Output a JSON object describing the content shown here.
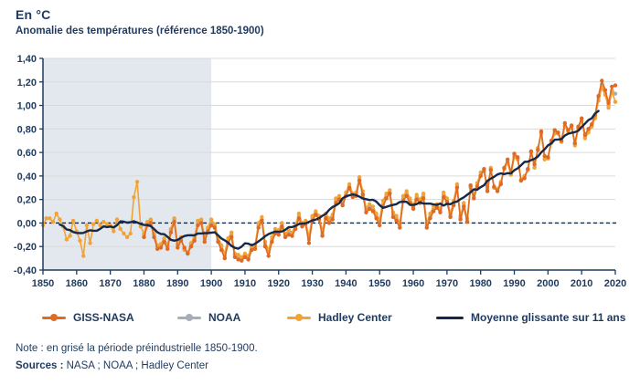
{
  "page_background": "#ffffff",
  "header": {
    "unit_label": "En °C",
    "title": "Anomalie des températures (référence 1850-1900)"
  },
  "colors": {
    "text_navy": "#1e3a5f",
    "axis_navy": "#1e3a5f",
    "grid": "#d9d9d9",
    "grid_on_band": "#f2f4f7",
    "zero_dash": "#0f2644",
    "preindustrial_band": "#e3e8ee",
    "giss_nasa": "#e06a22",
    "noaa": "#a7aeb9",
    "hadley": "#f2a336",
    "moving_average": "#14294a"
  },
  "chart_data": {
    "type": "line",
    "title": "Anomalie des températures (référence 1850-1900)",
    "ylabel": "En °C",
    "xlabel": "",
    "grid": "horizontal",
    "legend_position": "bottom",
    "xlim": [
      1850,
      2020
    ],
    "ylim": [
      -0.4,
      1.4
    ],
    "xticks": [
      1850,
      1860,
      1870,
      1880,
      1890,
      1900,
      1910,
      1920,
      1930,
      1940,
      1950,
      1960,
      1970,
      1980,
      1990,
      2000,
      2010,
      2020
    ],
    "yticks": [
      {
        "value": 1.4,
        "label": "1,40"
      },
      {
        "value": 1.2,
        "label": "1,20"
      },
      {
        "value": 1.0,
        "label": "1,00"
      },
      {
        "value": 0.8,
        "label": "0,80"
      },
      {
        "value": 0.6,
        "label": "0,60"
      },
      {
        "value": 0.4,
        "label": "0,40"
      },
      {
        "value": 0.2,
        "label": "0,20"
      },
      {
        "value": 0.0,
        "label": "0,00"
      },
      {
        "value": -0.2,
        "label": "-0,20"
      },
      {
        "value": -0.4,
        "label": "-0,40"
      }
    ],
    "zero_line_dashed": true,
    "shaded_region": {
      "from": 1850,
      "to": 1900,
      "meaning": "période préindustrielle 1850-1900"
    },
    "series": [
      {
        "name": "GISS-NASA",
        "color": "#e06a22",
        "marker": "dot",
        "start_year": 1880,
        "values": [
          -0.12,
          -0.02,
          0.0,
          -0.12,
          -0.22,
          -0.21,
          -0.16,
          -0.22,
          -0.08,
          0.01,
          -0.21,
          -0.15,
          -0.21,
          -0.26,
          -0.2,
          -0.15,
          -0.02,
          0.0,
          -0.16,
          -0.07,
          -0.02,
          -0.04,
          -0.16,
          -0.23,
          -0.3,
          -0.17,
          -0.12,
          -0.29,
          -0.31,
          -0.32,
          -0.29,
          -0.31,
          -0.23,
          -0.22,
          -0.04,
          0.02,
          -0.2,
          -0.28,
          -0.16,
          -0.09,
          -0.1,
          -0.03,
          -0.12,
          -0.1,
          -0.11,
          -0.05,
          0.04,
          -0.03,
          -0.01,
          -0.17,
          0.02,
          0.07,
          0.03,
          -0.11,
          0.04,
          0.0,
          0.03,
          0.17,
          0.2,
          0.15,
          0.23,
          0.3,
          0.22,
          0.23,
          0.36,
          0.24,
          0.09,
          0.12,
          0.1,
          0.04,
          -0.02,
          0.14,
          0.21,
          0.25,
          0.05,
          0.02,
          -0.04,
          0.19,
          0.23,
          0.17,
          0.12,
          0.2,
          0.17,
          0.21,
          -0.04,
          0.04,
          0.1,
          0.13,
          0.09,
          0.22,
          0.18,
          0.05,
          0.15,
          0.3,
          0.03,
          0.14,
          0.01,
          0.32,
          0.21,
          0.31,
          0.4,
          0.46,
          0.27,
          0.45,
          0.31,
          0.27,
          0.33,
          0.47,
          0.54,
          0.43,
          0.59,
          0.56,
          0.36,
          0.38,
          0.46,
          0.61,
          0.5,
          0.62,
          0.78,
          0.57,
          0.56,
          0.7,
          0.79,
          0.77,
          0.7,
          0.85,
          0.79,
          0.83,
          0.68,
          0.82,
          0.89,
          0.75,
          0.8,
          0.84,
          0.92,
          1.08,
          1.21,
          1.13,
          1.02,
          1.16,
          1.17
        ]
      },
      {
        "name": "NOAA",
        "color": "#a7aeb9",
        "marker": "dot",
        "start_year": 1880,
        "values": [
          -0.1,
          0.0,
          0.02,
          -0.1,
          -0.2,
          -0.2,
          -0.14,
          -0.2,
          -0.06,
          0.03,
          -0.19,
          -0.13,
          -0.22,
          -0.26,
          -0.18,
          -0.13,
          0.0,
          0.02,
          -0.14,
          -0.05,
          0.01,
          -0.02,
          -0.14,
          -0.21,
          -0.28,
          -0.15,
          -0.1,
          -0.27,
          -0.29,
          -0.3,
          -0.27,
          -0.3,
          -0.21,
          -0.2,
          -0.02,
          0.03,
          -0.18,
          -0.25,
          -0.14,
          -0.07,
          -0.08,
          -0.01,
          -0.1,
          -0.08,
          -0.09,
          -0.03,
          0.06,
          -0.01,
          0.0,
          -0.14,
          0.04,
          0.08,
          0.04,
          -0.09,
          0.06,
          0.02,
          0.05,
          0.19,
          0.21,
          0.17,
          0.24,
          0.31,
          0.23,
          0.24,
          0.37,
          0.25,
          0.11,
          0.14,
          0.12,
          0.06,
          0.01,
          0.16,
          0.23,
          0.26,
          0.07,
          0.04,
          -0.02,
          0.21,
          0.25,
          0.19,
          0.13,
          0.22,
          0.18,
          0.23,
          -0.02,
          0.06,
          0.12,
          0.14,
          0.1,
          0.24,
          0.19,
          0.06,
          0.17,
          0.31,
          0.04,
          0.15,
          0.02,
          0.3,
          0.22,
          0.32,
          0.41,
          0.44,
          0.29,
          0.46,
          0.3,
          0.28,
          0.34,
          0.46,
          0.52,
          0.42,
          0.57,
          0.55,
          0.36,
          0.39,
          0.45,
          0.6,
          0.48,
          0.63,
          0.77,
          0.55,
          0.55,
          0.69,
          0.77,
          0.76,
          0.69,
          0.83,
          0.78,
          0.82,
          0.67,
          0.81,
          0.88,
          0.73,
          0.78,
          0.83,
          0.9,
          1.06,
          1.18,
          1.1,
          1.0,
          1.13,
          1.1
        ]
      },
      {
        "name": "Hadley Center",
        "color": "#f2a336",
        "marker": "dot",
        "start_year": 1850,
        "values": [
          -0.02,
          0.04,
          0.04,
          0.01,
          0.08,
          0.03,
          -0.03,
          -0.14,
          -0.11,
          0.02,
          -0.07,
          -0.15,
          -0.28,
          -0.02,
          -0.17,
          -0.01,
          0.02,
          -0.02,
          0.01,
          -0.01,
          -0.02,
          -0.07,
          0.03,
          -0.05,
          -0.09,
          -0.12,
          -0.09,
          0.22,
          0.35,
          -0.03,
          -0.09,
          0.01,
          0.03,
          -0.09,
          -0.19,
          -0.18,
          -0.13,
          -0.19,
          -0.05,
          0.04,
          -0.18,
          -0.12,
          -0.23,
          -0.25,
          -0.17,
          -0.12,
          0.02,
          0.03,
          -0.12,
          -0.04,
          0.03,
          -0.01,
          -0.12,
          -0.19,
          -0.26,
          -0.13,
          -0.08,
          -0.26,
          -0.27,
          -0.29,
          -0.26,
          -0.28,
          -0.19,
          -0.19,
          0.0,
          0.05,
          -0.16,
          -0.23,
          -0.12,
          -0.05,
          -0.06,
          0.0,
          -0.09,
          -0.06,
          -0.08,
          -0.02,
          0.08,
          0.0,
          0.02,
          -0.12,
          0.06,
          0.1,
          0.06,
          -0.07,
          0.08,
          0.04,
          0.07,
          0.21,
          0.23,
          0.19,
          0.26,
          0.33,
          0.25,
          0.26,
          0.39,
          0.27,
          0.13,
          0.16,
          0.14,
          0.08,
          0.03,
          0.19,
          0.25,
          0.28,
          0.09,
          0.06,
          0.0,
          0.23,
          0.27,
          0.21,
          0.15,
          0.24,
          0.2,
          0.25,
          0.0,
          0.08,
          0.14,
          0.16,
          0.12,
          0.26,
          0.21,
          0.08,
          0.19,
          0.33,
          0.06,
          0.17,
          0.04,
          0.31,
          0.24,
          0.34,
          0.43,
          0.45,
          0.31,
          0.47,
          0.3,
          0.29,
          0.35,
          0.46,
          0.51,
          0.41,
          0.56,
          0.54,
          0.37,
          0.4,
          0.45,
          0.6,
          0.47,
          0.64,
          0.76,
          0.54,
          0.55,
          0.68,
          0.76,
          0.76,
          0.69,
          0.82,
          0.78,
          0.81,
          0.66,
          0.8,
          0.87,
          0.72,
          0.77,
          0.82,
          0.89,
          1.04,
          1.15,
          1.09,
          0.98,
          1.12,
          1.03
        ]
      },
      {
        "name": "Moyenne glissante sur 11 ans",
        "color": "#14294a",
        "marker": "none",
        "derived_from": "Hadley Center",
        "window": 11
      }
    ]
  },
  "legend": {
    "items": [
      {
        "label": "GISS-NASA"
      },
      {
        "label": "NOAA"
      },
      {
        "label": "Hadley Center"
      },
      {
        "label": "Moyenne glissante sur 11 ans"
      }
    ]
  },
  "footer": {
    "note": "Note : en grisé la période préindustrielle 1850-1900.",
    "sources_label": "Sources :",
    "sources_text": " NASA ; NOAA ; Hadley Center"
  }
}
